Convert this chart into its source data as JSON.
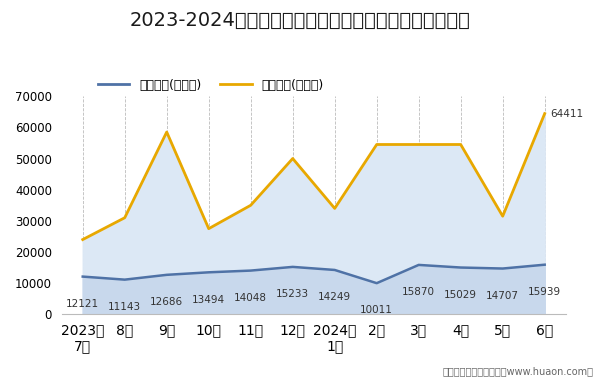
{
  "title": "2023-2024年甘肃省商品收发货人所在地进、出口额统计",
  "x_labels": [
    "2023年\n7月",
    "8月",
    "9月",
    "10月",
    "11月",
    "12月",
    "2024年\n1月",
    "2月",
    "3月",
    "4月",
    "5月",
    "6月"
  ],
  "export_values": [
    12121,
    11143,
    12686,
    13494,
    14048,
    15233,
    14249,
    10011,
    15870,
    15029,
    14707,
    15939
  ],
  "import_values": [
    24000,
    31000,
    58500,
    27500,
    35000,
    50000,
    34000,
    54500,
    54500,
    54500,
    31500,
    64411
  ],
  "export_label": "出口总额(万美元)",
  "import_label": "进口总额(万美元)",
  "export_line_color": "#4f72a6",
  "import_line_color": "#e8a800",
  "import_fill_color": "#dce8f5",
  "export_fill_color": "#c8d8ec",
  "ylim": [
    0,
    70000
  ],
  "yticks": [
    0,
    10000,
    20000,
    30000,
    40000,
    50000,
    60000,
    70000
  ],
  "footer_text": "制图：华经产业研究院（www.huaon.com）",
  "bg_color": "#ffffff",
  "plot_bg_color": "#ffffff",
  "title_fontsize": 14,
  "tick_fontsize": 8.5,
  "annotation_fontsize": 7.5,
  "legend_fontsize": 9
}
